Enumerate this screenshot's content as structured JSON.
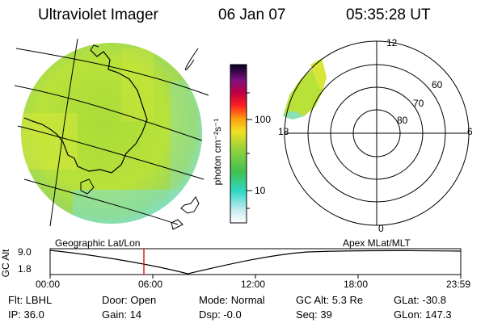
{
  "header": {
    "title": "Ultraviolet Imager",
    "date": "06 Jan 07",
    "time": "05:35:28 UT"
  },
  "colorbar": {
    "label": "photon cm⁻²s⁻¹",
    "ticks": [
      "100",
      "10"
    ]
  },
  "polar": {
    "mlt_labels": [
      "12",
      "18",
      "6",
      "0"
    ],
    "lat_labels": [
      "60",
      "70",
      "80"
    ]
  },
  "projections": {
    "left": "Geographic Lat/Lon",
    "right": "Apex MLat/MLT"
  },
  "altitude": {
    "axis_label": "GC Alt",
    "ymax": "9.0",
    "ymin": "1.8",
    "xticks": [
      "00:00",
      "06:00",
      "12:00",
      "18:00",
      "23:59"
    ],
    "marker_time": "05:35"
  },
  "info": {
    "flt": "Flt: LBHL",
    "ip": "IP: 36.0",
    "door": "Door: Open",
    "gain": "Gain: 14",
    "mode": "Mode: Normal",
    "dsp": "Dsp:   -0.0",
    "gcalt": "GC Alt: 5.3 Re",
    "seq": "Seq: 39",
    "glat": "GLat: -30.8",
    "glon": "GLon: 147.3"
  },
  "colors": {
    "image_fill": "#b8e23a",
    "image_dense": "#86d34a",
    "image_cyan": "#7fe0d0",
    "marker": "#d62020"
  }
}
